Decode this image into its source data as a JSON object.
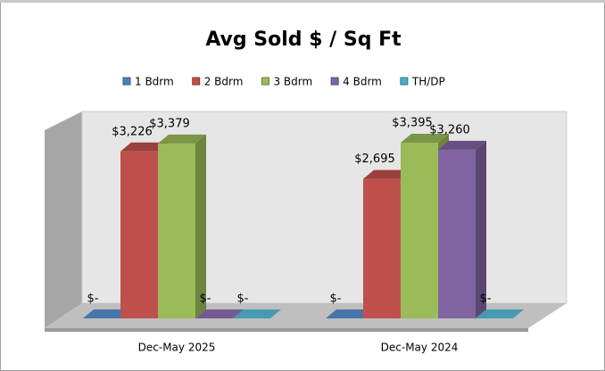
{
  "chart_data": {
    "type": "bar3d",
    "title": "Avg Sold $ / Sq Ft",
    "categories": [
      "Dec-May 2025",
      "Dec-May 2024"
    ],
    "series": [
      {
        "name": "1 Bdrm",
        "color": "#4f81bd",
        "values": [
          0,
          0
        ],
        "value_labels": [
          "$-",
          "$-"
        ]
      },
      {
        "name": "2 Bdrm",
        "color": "#c0504d",
        "values": [
          3226,
          2695
        ],
        "value_labels": [
          "$3,226",
          "$2,695"
        ]
      },
      {
        "name": "3 Bdrm",
        "color": "#9bbb59",
        "values": [
          3379,
          3395
        ],
        "value_labels": [
          "$3,379",
          "$3,395"
        ]
      },
      {
        "name": "4 Bdrm",
        "color": "#8064a2",
        "values": [
          0,
          3260
        ],
        "value_labels": [
          "$-",
          "$3,260"
        ]
      },
      {
        "name": "TH/DP",
        "color": "#4bacc6",
        "values": [
          0,
          0
        ],
        "value_labels": [
          "$-",
          "$-"
        ]
      }
    ],
    "legend": "top"
  }
}
